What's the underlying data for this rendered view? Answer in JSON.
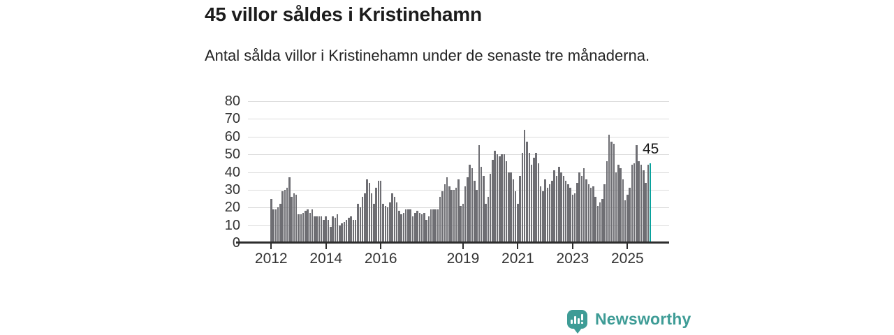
{
  "header": {
    "title": "45 villor såldes i Kristinehamn",
    "subtitle": "Antal sålda villor i Kristinehamn under de senaste tre månaderna."
  },
  "chart_data": {
    "type": "bar",
    "title": "45 villor såldes i Kristinehamn",
    "subtitle": "Antal sålda villor i Kristinehamn under de senaste tre månaderna.",
    "xlabel": "",
    "ylabel": "",
    "ylim": [
      0,
      80
    ],
    "yticks": [
      0,
      10,
      20,
      30,
      40,
      50,
      60,
      70,
      80
    ],
    "grid": "horizontal",
    "xticks": [
      {
        "label": "2012",
        "month_index": 0
      },
      {
        "label": "2014",
        "month_index": 24
      },
      {
        "label": "2016",
        "month_index": 48
      },
      {
        "label": "2019",
        "month_index": 84
      },
      {
        "label": "2021",
        "month_index": 108
      },
      {
        "label": "2023",
        "month_index": 132
      },
      {
        "label": "2025",
        "month_index": 156
      }
    ],
    "values": [
      25,
      19,
      19,
      20,
      22,
      29,
      30,
      31,
      37,
      26,
      28,
      27,
      16,
      16,
      17,
      18,
      19,
      17,
      19,
      15,
      15,
      15,
      15,
      13,
      15,
      13,
      9,
      15,
      14,
      16,
      10,
      11,
      12,
      13,
      14,
      15,
      13,
      13,
      22,
      20,
      26,
      28,
      36,
      34,
      28,
      22,
      31,
      35,
      35,
      22,
      21,
      20,
      23,
      28,
      26,
      23,
      18,
      16,
      17,
      19,
      19,
      19,
      15,
      17,
      18,
      17,
      16,
      17,
      13,
      15,
      19,
      19,
      19,
      19,
      26,
      29,
      33,
      37,
      32,
      30,
      30,
      31,
      36,
      21,
      22,
      32,
      37,
      44,
      42,
      35,
      30,
      55,
      43,
      38,
      22,
      26,
      39,
      47,
      52,
      50,
      49,
      50,
      50,
      46,
      40,
      40,
      36,
      29,
      22,
      38,
      51,
      64,
      57,
      51,
      44,
      48,
      51,
      45,
      32,
      29,
      36,
      31,
      33,
      35,
      41,
      38,
      43,
      40,
      38,
      35,
      33,
      31,
      27,
      28,
      34,
      40,
      38,
      42,
      36,
      33,
      31,
      32,
      26,
      21,
      23,
      25,
      33,
      46,
      61,
      57,
      56,
      40,
      44,
      42,
      36,
      24,
      27,
      31,
      44,
      45,
      55,
      46,
      44,
      41,
      34,
      44,
      45
    ],
    "highlight_last": true,
    "annotation": {
      "text": "45",
      "target": "last-bar"
    },
    "legend": "none",
    "colors": {
      "bar": "#6e6e73",
      "highlight": "#0aa29d",
      "grid": "#dcdcdc",
      "axis": "#2d2d2d",
      "text": "#333333"
    }
  },
  "brand": {
    "name": "Newsworthy",
    "color": "#3e9c96",
    "icon": "newsworthy-chart-bubble"
  }
}
